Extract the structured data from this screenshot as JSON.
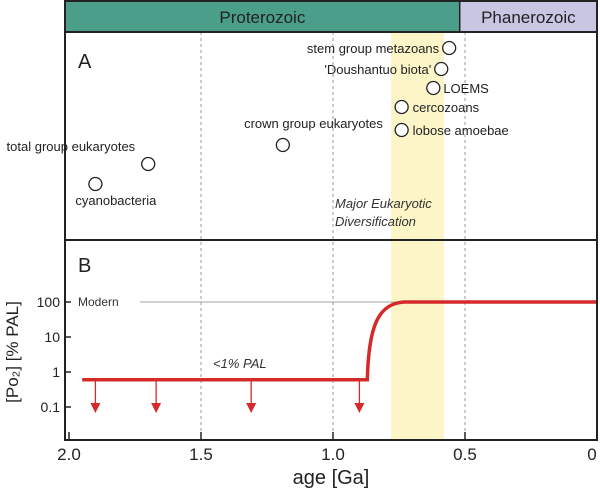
{
  "chart_data": [
    {
      "type": "scatter",
      "panel_label": "A",
      "eras": [
        {
          "name": "Proterozoic",
          "color": "#4a9e8a"
        },
        {
          "name": "Phanerozoic",
          "color": "#c9c6e3"
        }
      ],
      "era_boundary_ga": 0.52,
      "xlim": [
        2.0,
        0
      ],
      "highlight_band": {
        "from": 0.78,
        "to": 0.58,
        "color": "#fbf5c8",
        "label_line1": "Major Eukaryotic",
        "label_line2": "Diversification"
      },
      "points": [
        {
          "label": "cyanobacteria",
          "x": 1.9
        },
        {
          "label": "total group eukaryotes",
          "x": 1.7
        },
        {
          "label": "crown group eukaryotes",
          "x": 1.19
        },
        {
          "label": "lobose amoebae",
          "x": 0.74
        },
        {
          "label": "cercozoans",
          "x": 0.74
        },
        {
          "label": "LOEMS",
          "x": 0.62
        },
        {
          "label": "'Doushantuo biota'",
          "x": 0.59
        },
        {
          "label": "stem group metazoans",
          "x": 0.56
        }
      ]
    },
    {
      "type": "line",
      "panel_label": "B",
      "xlabel": "age [Ga]",
      "ylabel": "[Po₂] [% PAL]",
      "xlim": [
        2.0,
        0
      ],
      "x_ticks": [
        "2.0",
        "1.5",
        "1.0",
        "0.5",
        "0"
      ],
      "y_scale": "log",
      "y_ticks": [
        "100",
        "10",
        "1",
        "0.1"
      ],
      "reference_line": {
        "value": 100,
        "label": "Modern"
      },
      "annotation": "<1% PAL",
      "series_color": "#d42a2a",
      "series": [
        {
          "x": [
            1.95,
            0.87,
            0.85,
            0.8,
            0.76,
            0.73,
            0
          ],
          "y": [
            0.6,
            0.6,
            4,
            30,
            75,
            100,
            100
          ]
        }
      ],
      "upper_limit_arrows_at": [
        1.9,
        1.67,
        1.31,
        0.9
      ]
    }
  ]
}
